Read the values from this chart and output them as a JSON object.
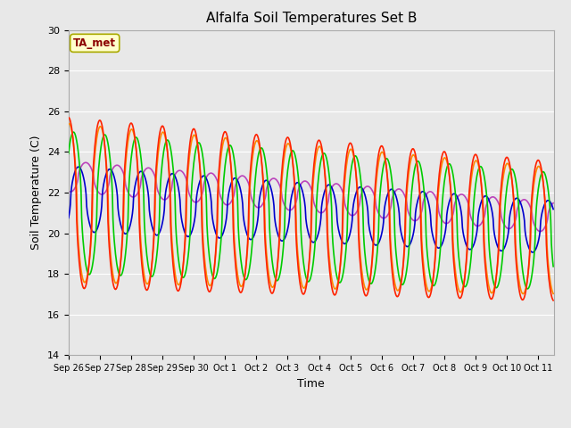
{
  "title": "Alfalfa Soil Temperatures Set B",
  "xlabel": "Time",
  "ylabel": "Soil Temperature (C)",
  "ylim": [
    14,
    30
  ],
  "background_color": "#e8e8e8",
  "fig_facecolor": "#e8e8e8",
  "annotation_text": "TA_met",
  "annotation_color": "#8b0000",
  "annotation_bg": "#ffffcc",
  "annotation_border": "#aaaa00",
  "series_colors": {
    "-2cm": "#ff2200",
    "-4cm": "#ff8800",
    "-8cm": "#00cc00",
    "-16cm": "#0000cc",
    "-32cm": "#bb44bb"
  },
  "x_tick_labels": [
    "Sep 26",
    "Sep 27",
    "Sep 28",
    "Sep 29",
    "Sep 30",
    "Oct 1",
    "Oct 2",
    "Oct 3",
    "Oct 4",
    "Oct 5",
    "Oct 6",
    "Oct 7",
    "Oct 8",
    "Oct 9",
    "Oct 10",
    "Oct 11"
  ],
  "x_tick_positions": [
    0,
    1,
    2,
    3,
    4,
    5,
    6,
    7,
    8,
    9,
    10,
    11,
    12,
    13,
    14,
    15
  ],
  "y_ticks": [
    14,
    16,
    18,
    20,
    22,
    24,
    26,
    28,
    30
  ],
  "n_days": 15.5
}
